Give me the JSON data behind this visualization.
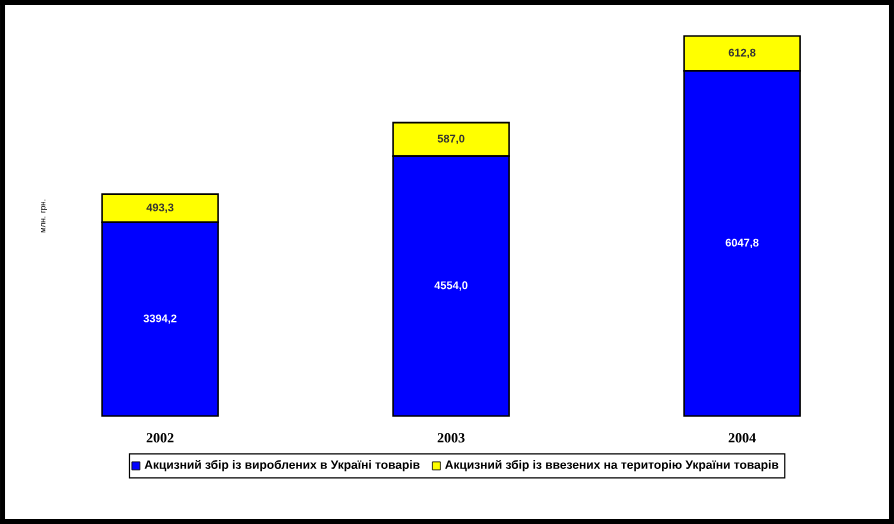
{
  "chart_data": {
    "type": "bar",
    "stacked": true,
    "ylabel": "млн. грн.",
    "categories": [
      "2002",
      "2003",
      "2004"
    ],
    "series": [
      {
        "name": "Акцизний збір із вироблених в Україні товарів",
        "color": "#0000ff",
        "values": [
          3394.2,
          4554.0,
          6047.8
        ],
        "value_labels": [
          "3394,2",
          "4554,0",
          "6047,8"
        ]
      },
      {
        "name": "Акцизний збір із ввезених на територію України товарів",
        "color": "#ffff00",
        "values": [
          493.3,
          587.0,
          612.8
        ],
        "value_labels": [
          "493,3",
          "587,0",
          "612,8"
        ]
      }
    ],
    "legend": "bottom"
  }
}
